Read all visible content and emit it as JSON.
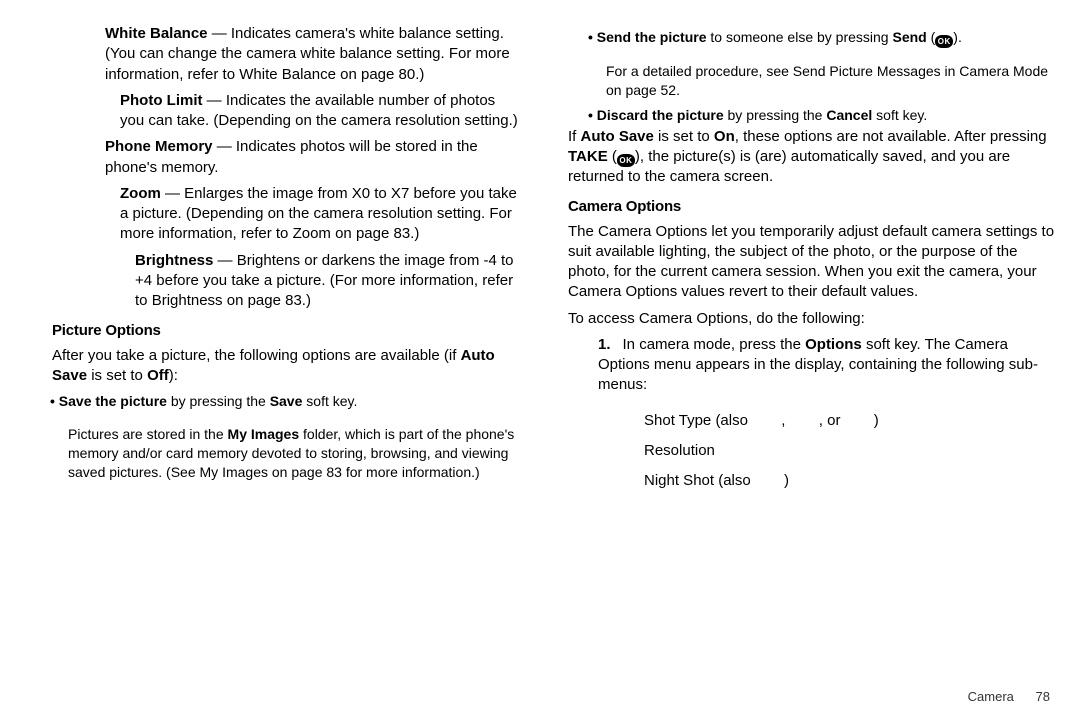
{
  "left": {
    "items": [
      {
        "indent": 1,
        "html": "<b>White Balance</b> — Indicates camera's white balance setting. (You can change the camera white balance setting. For more information, refer to <span>White Balance</span> on page 80.)"
      },
      {
        "indent": 2,
        "html": "<b>Photo Limit</b> — Indicates the available number of photos you can take. (Depending on the camera resolution setting.)"
      },
      {
        "indent": 1,
        "html": "<b>Phone Memory</b> — Indicates photos will be stored in the phone's memory."
      },
      {
        "indent": 2,
        "html": "<b>Zoom</b> — Enlarges the image from X0 to X7 before you take a picture. (Depending on the camera resolution setting. For more information, refer to <span>Zoom</span> on page 83.)"
      },
      {
        "indent": 3,
        "html": "<b>Brightness</b> — Brightens or darkens the image from -4 to +4 before you take a picture. (For more information, refer to <span>Brightness</span> on page 83.)"
      }
    ],
    "section_title": "Picture Options",
    "section_intro": "After you take a picture, the following options are available (if <b>Auto Save</b> is set to <b>Off</b>):",
    "bullet": {
      "line": "<b>Save the picture</b> by pressing the <b>Save</b> soft key.",
      "sub": "Pictures are stored in the <b>My Images</b> folder, which is part of the phone's memory and/or card memory devoted to storing, browsing, and viewing saved pictures. (See <span>My Images</span> on page 83 for more information.)"
    }
  },
  "right": {
    "bullets": [
      {
        "line": "<b>Send the picture</b> to someone else by pressing <b>Send</b> (<span class=\"ok-icon\">OK</span>).",
        "sub": "For a detailed procedure, see <span>Send Picture Messages in Camera Mode</span> on page 52."
      },
      {
        "line": "<b>Discard the picture</b> by pressing the <b>Cancel</b> soft key."
      }
    ],
    "autosave_note": "If <b>Auto Save</b> is set to <b>On</b>, these options are not available. After pressing <b>TAKE</b> (<span class=\"ok-icon\">OK</span>), the picture(s) is (are) automatically saved, and you are returned to the camera screen.",
    "section_title": "Camera Options",
    "section_body": [
      "The Camera Options let you temporarily adjust default camera settings to suit available lighting, the subject of the photo, or the purpose of the photo, for the current camera session. When you exit the camera, your Camera Options values revert to their default values.",
      "To access Camera Options, do the following:"
    ],
    "numbered": {
      "num": "1.",
      "text": "In camera mode, press the <b>Options</b> soft key. The Camera Options menu appears in the display, containing the following sub-menus:"
    },
    "sublist": [
      "Shot Type (also&nbsp;&nbsp;&nbsp;&nbsp;&nbsp;&nbsp;&nbsp;&nbsp;,&nbsp;&nbsp;&nbsp;&nbsp;&nbsp;&nbsp;&nbsp;&nbsp;, or&nbsp;&nbsp;&nbsp;&nbsp;&nbsp;&nbsp;&nbsp;&nbsp;)",
      "Resolution",
      "Night Shot (also&nbsp;&nbsp;&nbsp;&nbsp;&nbsp;&nbsp;&nbsp;&nbsp;)"
    ]
  },
  "footer": {
    "section": "Camera",
    "page": "78"
  }
}
